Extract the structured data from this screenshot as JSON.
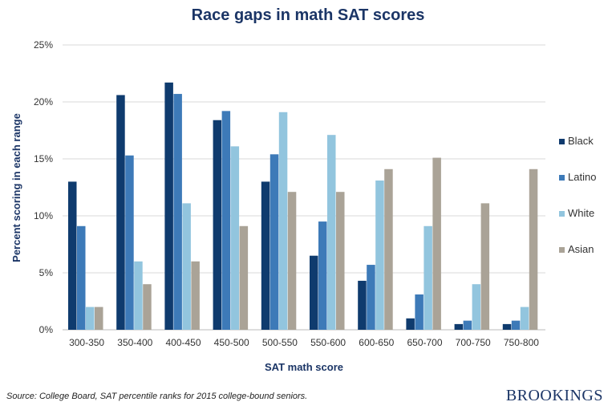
{
  "chart_data": {
    "type": "bar",
    "title": "Race gaps in math SAT scores",
    "xlabel": "SAT math score",
    "ylabel": "Percent scoring in each range",
    "ylim": [
      0,
      25
    ],
    "yticks": [
      "0%",
      "5%",
      "10%",
      "15%",
      "20%",
      "25%"
    ],
    "grid": true,
    "legend": "right",
    "categories": [
      "300-350",
      "350-400",
      "400-450",
      "450-500",
      "500-550",
      "550-600",
      "600-650",
      "650-700",
      "700-750",
      "750-800"
    ],
    "series": [
      {
        "name": "Black",
        "color": "#0f3b6e",
        "values": [
          13,
          20.6,
          21.7,
          18.4,
          13,
          6.5,
          4.3,
          1,
          0.5,
          0.5
        ]
      },
      {
        "name": "Latino",
        "color": "#3d7ab8",
        "values": [
          9.1,
          15.3,
          20.7,
          19.2,
          15.4,
          9.5,
          5.7,
          3.1,
          0.8,
          0.8
        ]
      },
      {
        "name": "White",
        "color": "#92c5de",
        "values": [
          2,
          6,
          11.1,
          16.1,
          19.1,
          17.1,
          13.1,
          9.1,
          4,
          2
        ]
      },
      {
        "name": "Asian",
        "color": "#aaa397",
        "values": [
          2,
          4,
          6,
          9.1,
          12.1,
          12.1,
          14.1,
          15.1,
          11.1,
          14.1
        ]
      }
    ]
  },
  "source": "Source: College Board, SAT percentile ranks for 2015 college-bound seniors.",
  "logo": "BROOKINGS"
}
